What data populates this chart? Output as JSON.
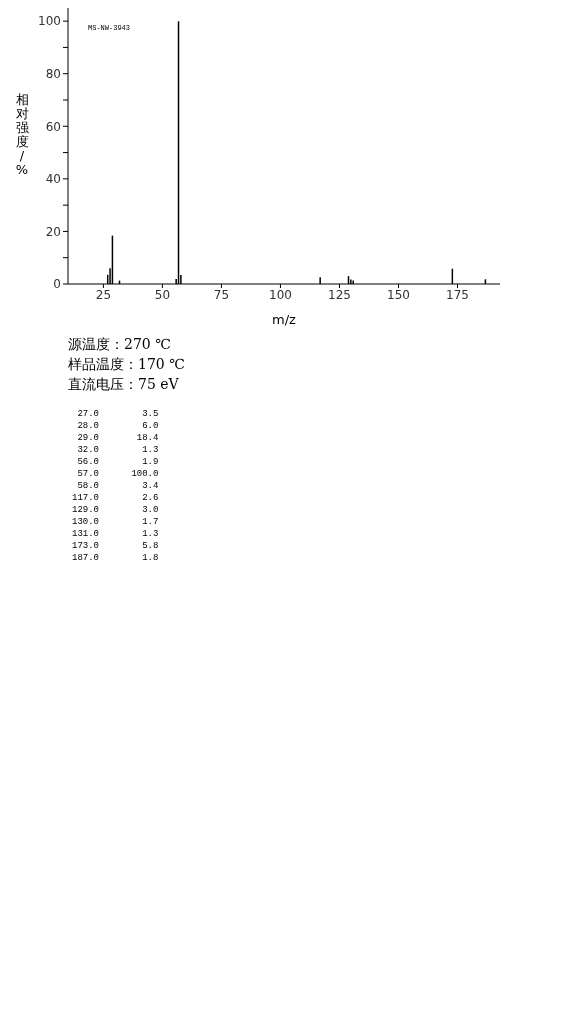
{
  "chart_data": {
    "type": "bar",
    "xlabel": "m/z",
    "ylabel": "相对强度/%",
    "x": [
      27,
      28,
      29,
      32,
      56,
      57,
      58,
      117,
      129,
      130,
      131,
      173,
      187
    ],
    "values": [
      3.5,
      6.0,
      18.4,
      1.3,
      1.9,
      100.0,
      3.4,
      2.6,
      3.0,
      1.7,
      1.3,
      5.8,
      1.8
    ],
    "color": "#000000",
    "xlim": [
      10,
      193
    ],
    "xticks": [
      25,
      50,
      75,
      100,
      125,
      150,
      175
    ],
    "ylim": [
      0,
      105
    ],
    "yticks": [
      0,
      {
        "value": 10,
        "label": null
      },
      20,
      {
        "value": 30,
        "label": null
      },
      40,
      {
        "value": 50,
        "label": null
      },
      60,
      {
        "value": 70,
        "label": null
      },
      80,
      {
        "value": 90,
        "label": null
      },
      100
    ],
    "grid": false,
    "legend": false,
    "annotations": [
      "MS-NW-3943",
      "源温度：270 ℃",
      "样品温度：170 ℃",
      "直流电压：75 eV",
      " 27.0        3.5",
      " 28.0        6.0",
      " 29.0       18.4",
      " 32.0        1.3",
      " 56.0        1.9",
      " 57.0      100.0",
      " 58.0        3.4",
      "117.0        2.6",
      "129.0        3.0",
      "130.0        1.7",
      "131.0        1.3",
      "173.0        5.8",
      "187.0        1.8"
    ]
  }
}
